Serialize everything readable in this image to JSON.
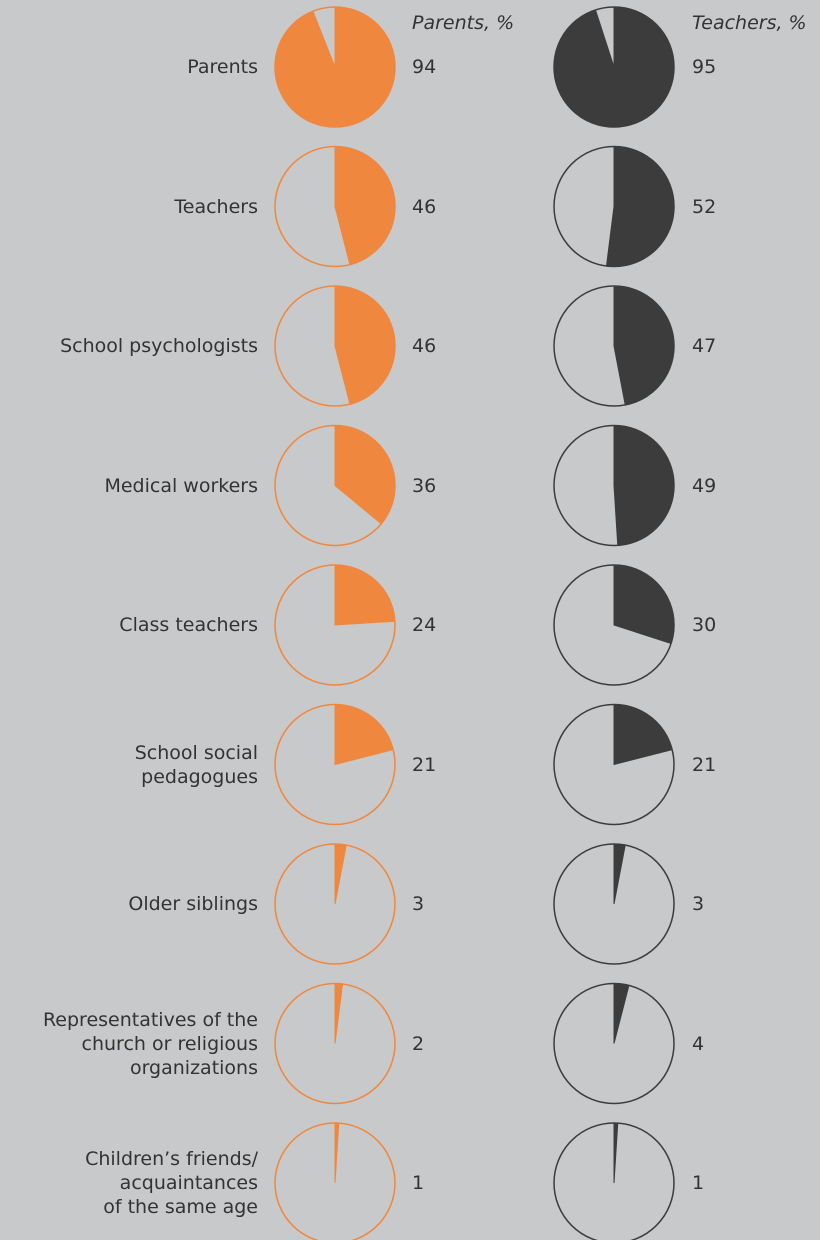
{
  "chart_data": {
    "type": "pie-grid",
    "categories": [
      "Parents",
      "Teachers",
      "School psychologists",
      "Medical workers",
      "Class teachers",
      "School social\npedagogues",
      "Older siblings",
      "Representatives of the\nchurch or religious\norganizations",
      "Children’s friends/\nacquaintances\nof the same age"
    ],
    "series": [
      {
        "name": "Parents, %",
        "color": "#f0873e",
        "values": [
          94,
          46,
          46,
          36,
          24,
          21,
          3,
          2,
          1
        ]
      },
      {
        "name": "Teachers, %",
        "color": "#3c3c3c",
        "values": [
          95,
          52,
          47,
          49,
          30,
          21,
          3,
          4,
          1
        ]
      }
    ]
  }
}
